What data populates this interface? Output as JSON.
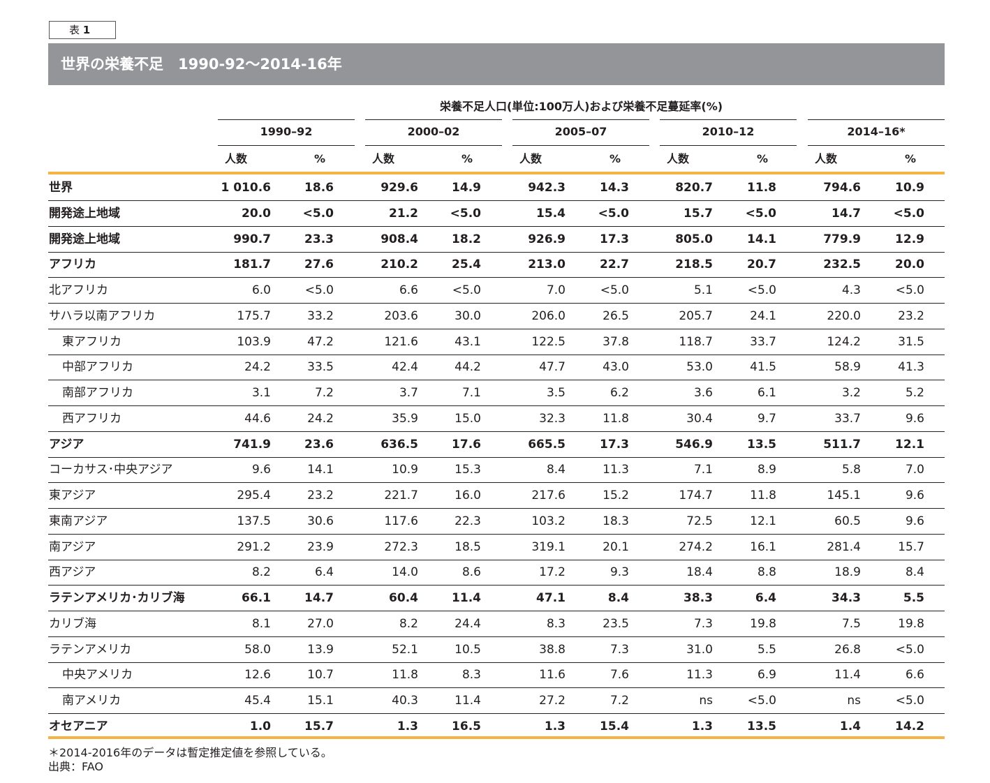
{
  "table_tag": {
    "prefix": "表",
    "number": "1"
  },
  "title": "世界の栄養不足　1990-92～2014-16年",
  "column_super_header": "栄養不足人口(単位:100万人)および栄養不足蔓延率(%)",
  "periods": [
    "1990–92",
    "2000–02",
    "2005–07",
    "2010–12",
    "2014–16*"
  ],
  "sub_headers": {
    "count": "人数",
    "pct": "%"
  },
  "colors": {
    "banner": "#939598",
    "accent_rule": "#f4b342",
    "text": "#231f20"
  },
  "rows": [
    {
      "label": "世界",
      "bold": true,
      "indent": false,
      "values": [
        "1 010.6",
        "18.6",
        "929.6",
        "14.9",
        "942.3",
        "14.3",
        "820.7",
        "11.8",
        "794.6",
        "10.9"
      ]
    },
    {
      "label": "開発途上地域",
      "bold": true,
      "indent": false,
      "values": [
        "20.0",
        "<5.0",
        "21.2",
        "<5.0",
        "15.4",
        "<5.0",
        "15.7",
        "<5.0",
        "14.7",
        "<5.0"
      ]
    },
    {
      "label": "開発途上地域",
      "bold": true,
      "indent": false,
      "values": [
        "990.7",
        "23.3",
        "908.4",
        "18.2",
        "926.9",
        "17.3",
        "805.0",
        "14.1",
        "779.9",
        "12.9"
      ]
    },
    {
      "label": "アフリカ",
      "bold": true,
      "indent": false,
      "values": [
        "181.7",
        "27.6",
        "210.2",
        "25.4",
        "213.0",
        "22.7",
        "218.5",
        "20.7",
        "232.5",
        "20.0"
      ]
    },
    {
      "label": "北アフリカ",
      "bold": false,
      "indent": false,
      "values": [
        "6.0",
        "<5.0",
        "6.6",
        "<5.0",
        "7.0",
        "<5.0",
        "5.1",
        "<5.0",
        "4.3",
        "<5.0"
      ]
    },
    {
      "label": "サハラ以南アフリカ",
      "bold": false,
      "indent": false,
      "values": [
        "175.7",
        "33.2",
        "203.6",
        "30.0",
        "206.0",
        "26.5",
        "205.7",
        "24.1",
        "220.0",
        "23.2"
      ]
    },
    {
      "label": "東アフリカ",
      "bold": false,
      "indent": true,
      "values": [
        "103.9",
        "47.2",
        "121.6",
        "43.1",
        "122.5",
        "37.8",
        "118.7",
        "33.7",
        "124.2",
        "31.5"
      ]
    },
    {
      "label": "中部アフリカ",
      "bold": false,
      "indent": true,
      "values": [
        "24.2",
        "33.5",
        "42.4",
        "44.2",
        "47.7",
        "43.0",
        "53.0",
        "41.5",
        "58.9",
        "41.3"
      ]
    },
    {
      "label": "南部アフリカ",
      "bold": false,
      "indent": true,
      "values": [
        "3.1",
        "7.2",
        "3.7",
        "7.1",
        "3.5",
        "6.2",
        "3.6",
        "6.1",
        "3.2",
        "5.2"
      ]
    },
    {
      "label": "西アフリカ",
      "bold": false,
      "indent": true,
      "values": [
        "44.6",
        "24.2",
        "35.9",
        "15.0",
        "32.3",
        "11.8",
        "30.4",
        "9.7",
        "33.7",
        "9.6"
      ]
    },
    {
      "label": "アジア",
      "bold": true,
      "indent": false,
      "values": [
        "741.9",
        "23.6",
        "636.5",
        "17.6",
        "665.5",
        "17.3",
        "546.9",
        "13.5",
        "511.7",
        "12.1"
      ]
    },
    {
      "label": "コーカサス･中央アジア",
      "bold": false,
      "indent": false,
      "values": [
        "9.6",
        "14.1",
        "10.9",
        "15.3",
        "8.4",
        "11.3",
        "7.1",
        "8.9",
        "5.8",
        "7.0"
      ]
    },
    {
      "label": "東アジア",
      "bold": false,
      "indent": false,
      "values": [
        "295.4",
        "23.2",
        "221.7",
        "16.0",
        "217.6",
        "15.2",
        "174.7",
        "11.8",
        "145.1",
        "9.6"
      ]
    },
    {
      "label": "東南アジア",
      "bold": false,
      "indent": false,
      "values": [
        "137.5",
        "30.6",
        "117.6",
        "22.3",
        "103.2",
        "18.3",
        "72.5",
        "12.1",
        "60.5",
        "9.6"
      ]
    },
    {
      "label": "南アジア",
      "bold": false,
      "indent": false,
      "values": [
        "291.2",
        "23.9",
        "272.3",
        "18.5",
        "319.1",
        "20.1",
        "274.2",
        "16.1",
        "281.4",
        "15.7"
      ]
    },
    {
      "label": "西アジア",
      "bold": false,
      "indent": false,
      "values": [
        "8.2",
        "6.4",
        "14.0",
        "8.6",
        "17.2",
        "9.3",
        "18.4",
        "8.8",
        "18.9",
        "8.4"
      ]
    },
    {
      "label": "ラテンアメリカ･カリブ海",
      "bold": true,
      "indent": false,
      "values": [
        "66.1",
        "14.7",
        "60.4",
        "11.4",
        "47.1",
        "8.4",
        "38.3",
        "6.4",
        "34.3",
        "5.5"
      ]
    },
    {
      "label": "カリブ海",
      "bold": false,
      "indent": false,
      "values": [
        "8.1",
        "27.0",
        "8.2",
        "24.4",
        "8.3",
        "23.5",
        "7.3",
        "19.8",
        "7.5",
        "19.8"
      ]
    },
    {
      "label": "ラテンアメリカ",
      "bold": false,
      "indent": false,
      "values": [
        "58.0",
        "13.9",
        "52.1",
        "10.5",
        "38.8",
        "7.3",
        "31.0",
        "5.5",
        "26.8",
        "<5.0"
      ]
    },
    {
      "label": "中央アメリカ",
      "bold": false,
      "indent": true,
      "values": [
        "12.6",
        "10.7",
        "11.8",
        "8.3",
        "11.6",
        "7.6",
        "11.3",
        "6.9",
        "11.4",
        "6.6"
      ]
    },
    {
      "label": "南アメリカ",
      "bold": false,
      "indent": true,
      "values": [
        "45.4",
        "15.1",
        "40.3",
        "11.4",
        "27.2",
        "7.2",
        "ns",
        "<5.0",
        "ns",
        "<5.0"
      ]
    },
    {
      "label": "オセアニア",
      "bold": true,
      "indent": false,
      "values": [
        "1.0",
        "15.7",
        "1.3",
        "16.5",
        "1.3",
        "15.4",
        "1.3",
        "13.5",
        "1.4",
        "14.2"
      ]
    }
  ],
  "footnote": "＊2014-2016年のデータは暫定推定値を参照している。",
  "source": "出典：FAO"
}
